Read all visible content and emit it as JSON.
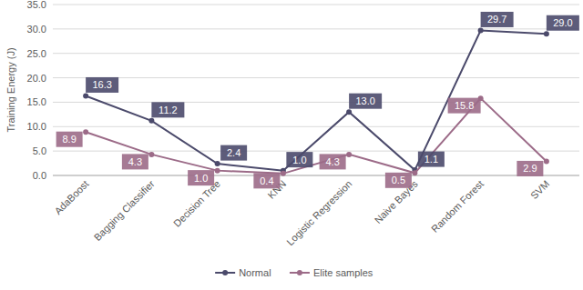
{
  "chart_data": {
    "type": "line",
    "y_label": "Training Energy (J)",
    "categories": [
      "AdaBoost",
      "Bagging Classifier",
      "Decision Tree",
      "KNN",
      "Logistic Regression",
      "Naive Bayes",
      "Random Forest",
      "SVM"
    ],
    "series": [
      {
        "name": "Normal",
        "color": "#4b4a6b",
        "marker": "circle",
        "values": [
          16.3,
          11.2,
          2.4,
          1.0,
          13.0,
          1.1,
          29.7,
          29.0
        ],
        "value_labels": [
          "16.3",
          "11.2",
          "2.4",
          "1.0",
          "13.0",
          "1.1",
          "29.7",
          "29.0"
        ]
      },
      {
        "name": "Elite samples",
        "color": "#9c6b88",
        "marker": "circle",
        "values": [
          8.9,
          4.3,
          1.0,
          0.4,
          4.3,
          0.5,
          15.8,
          2.9
        ],
        "value_labels": [
          "8.9",
          "4.3",
          "1.0",
          "0.4",
          "4.3",
          "0.5",
          "15.8",
          "2.9"
        ]
      }
    ],
    "ylim": [
      0,
      35
    ],
    "yticks": [
      {
        "value": 0,
        "label": "0.0"
      },
      {
        "value": 5,
        "label": "5.0"
      },
      {
        "value": 10,
        "label": "10.0"
      },
      {
        "value": 15,
        "label": "15.0"
      },
      {
        "value": 20,
        "label": "20.0"
      },
      {
        "value": 25,
        "label": "25.0"
      },
      {
        "value": 30,
        "label": "30.0"
      },
      {
        "value": 35,
        "label": "35.0"
      }
    ],
    "grid": true,
    "legend": "bottom",
    "data_labels": true
  }
}
